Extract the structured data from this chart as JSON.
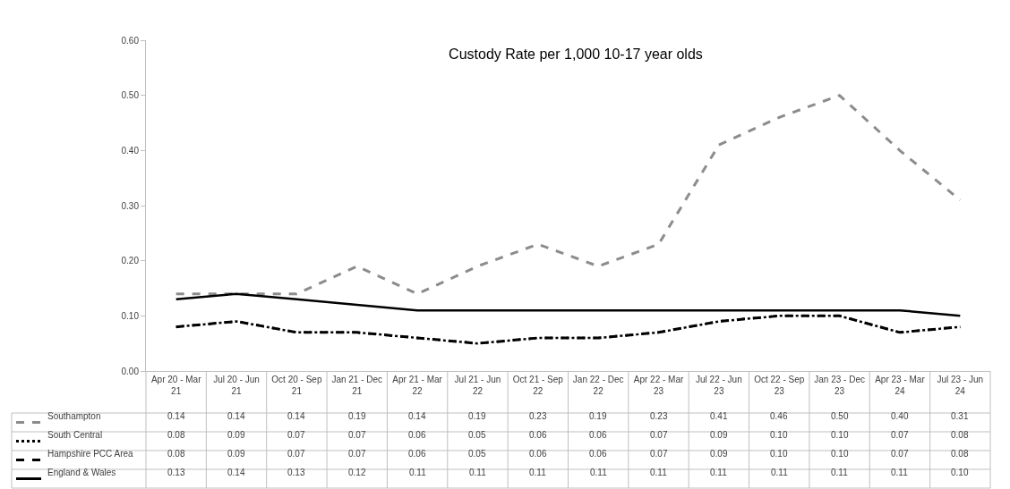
{
  "chart_data": {
    "type": "line",
    "title": "Custody Rate per 1,000 10-17 year olds",
    "categories": [
      "Apr 20 - Mar 21",
      "Jul 20 - Jun 21",
      "Oct 20 - Sep 21",
      "Jan 21 - Dec 21",
      "Apr 21 - Mar 22",
      "Jul 21 - Jun 22",
      "Oct 21 - Sep 22",
      "Jan 22 - Dec 22",
      "Apr 22 - Mar 23",
      "Jul 22 - Jun 23",
      "Oct 22 - Sep 23",
      "Jan 23 - Dec 23",
      "Apr 23 - Mar 24",
      "Jul 23 - Jun 24"
    ],
    "series": [
      {
        "name": "Southampton",
        "color": "#8c8c8c",
        "line_style": "dashed",
        "values": [
          0.14,
          0.14,
          0.14,
          0.19,
          0.14,
          0.19,
          0.23,
          0.19,
          0.23,
          0.41,
          0.46,
          0.5,
          0.4,
          0.31
        ],
        "value_labels": [
          "0.14",
          "0.14",
          "0.14",
          "0.19",
          "0.14",
          "0.19",
          "0.23",
          "0.19",
          "0.23",
          "0.41",
          "0.46",
          "0.50",
          "0.40",
          "0.31"
        ]
      },
      {
        "name": "South Central",
        "color": "#000000",
        "line_style": "dotted",
        "values": [
          0.08,
          0.09,
          0.07,
          0.07,
          0.06,
          0.05,
          0.06,
          0.06,
          0.07,
          0.09,
          0.1,
          0.1,
          0.07,
          0.08
        ],
        "value_labels": [
          "0.08",
          "0.09",
          "0.07",
          "0.07",
          "0.06",
          "0.05",
          "0.06",
          "0.06",
          "0.07",
          "0.09",
          "0.10",
          "0.10",
          "0.07",
          "0.08"
        ]
      },
      {
        "name": "Hampshire PCC Area",
        "color": "#000000",
        "line_style": "dashed",
        "values": [
          0.08,
          0.09,
          0.07,
          0.07,
          0.06,
          0.05,
          0.06,
          0.06,
          0.07,
          0.09,
          0.1,
          0.1,
          0.07,
          0.08
        ],
        "value_labels": [
          "0.08",
          "0.09",
          "0.07",
          "0.07",
          "0.06",
          "0.05",
          "0.06",
          "0.06",
          "0.07",
          "0.09",
          "0.10",
          "0.10",
          "0.07",
          "0.08"
        ]
      },
      {
        "name": "England & Wales",
        "color": "#000000",
        "line_style": "solid",
        "values": [
          0.13,
          0.14,
          0.13,
          0.12,
          0.11,
          0.11,
          0.11,
          0.11,
          0.11,
          0.11,
          0.11,
          0.11,
          0.11,
          0.1
        ],
        "value_labels": [
          "0.13",
          "0.14",
          "0.13",
          "0.12",
          "0.11",
          "0.11",
          "0.11",
          "0.11",
          "0.11",
          "0.11",
          "0.11",
          "0.11",
          "0.11",
          "0.10"
        ]
      }
    ],
    "ylim": [
      0,
      0.6
    ],
    "yticks": [
      {
        "value": 0,
        "label": "0.00"
      },
      {
        "value": 0.1,
        "label": "0.10"
      },
      {
        "value": 0.2,
        "label": "0.20"
      },
      {
        "value": 0.3,
        "label": "0.30"
      },
      {
        "value": 0.4,
        "label": "0.40"
      },
      {
        "value": 0.5,
        "label": "0.50"
      },
      {
        "value": 0.6,
        "label": "0.60"
      }
    ],
    "legend": "bottom",
    "marker": "none"
  }
}
